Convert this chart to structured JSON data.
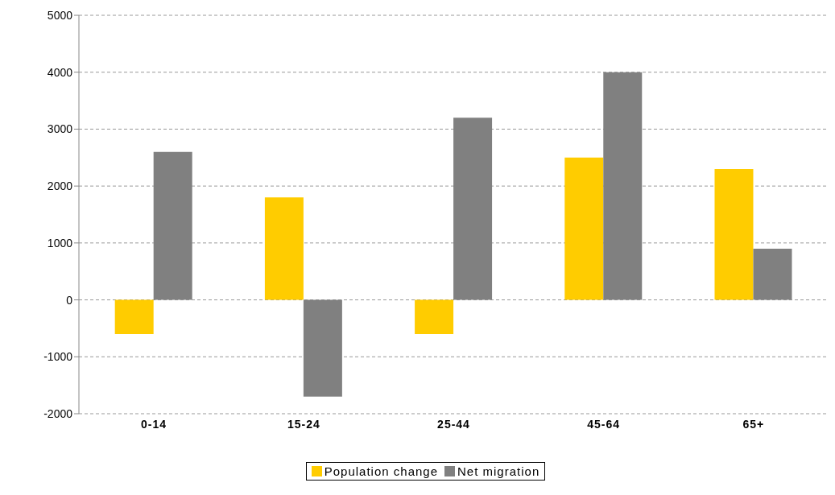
{
  "chart_data": {
    "type": "bar",
    "categories": [
      "0-14",
      "15-24",
      "25-44",
      "45-64",
      "65+"
    ],
    "series": [
      {
        "name": "Population change",
        "color": "#ffcc00",
        "values": [
          -600,
          1800,
          -600,
          2500,
          2300
        ]
      },
      {
        "name": "Net migration",
        "color": "#808080",
        "values": [
          2600,
          -1700,
          3200,
          4000,
          900
        ]
      }
    ],
    "ylim": [
      -2000,
      5000
    ],
    "yticks": [
      -2000,
      -1000,
      0,
      1000,
      2000,
      3000,
      4000,
      5000
    ],
    "grid": "y",
    "legend": "bottom"
  }
}
